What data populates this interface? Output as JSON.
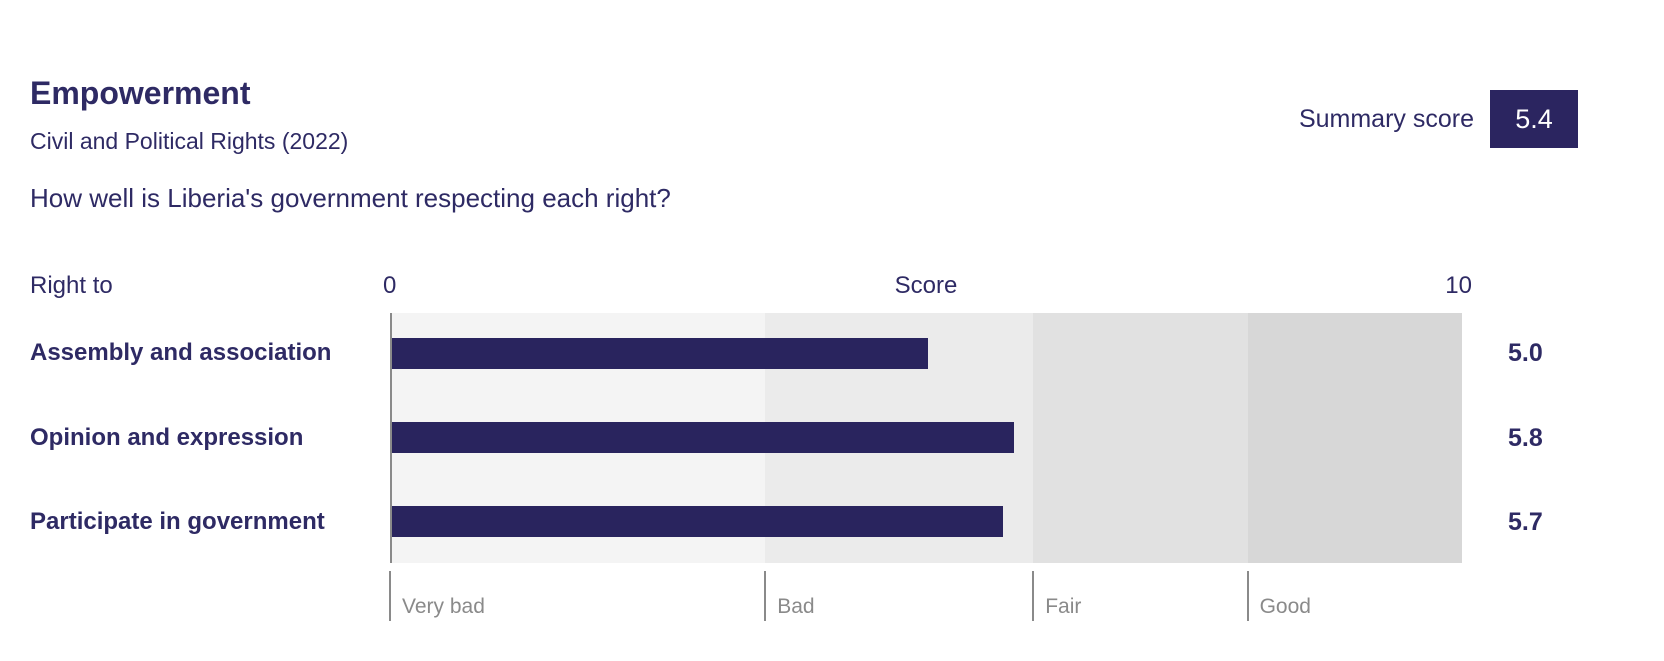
{
  "header": {
    "title": "Empowerment",
    "subtitle": "Civil and Political Rights (2022)",
    "question": "How well is Liberia's government respecting each right?",
    "summary_label": "Summary score",
    "summary_value": "5.4"
  },
  "chart_data": {
    "type": "bar",
    "title": "Empowerment — Civil and Political Rights (2022)",
    "orientation": "horizontal",
    "row_header": "Right to",
    "xlabel": "Score",
    "xlim": [
      0,
      10
    ],
    "axis": {
      "min_label": "0",
      "max_label": "10"
    },
    "categories": [
      "Assembly and association",
      "Opinion and expression",
      "Participate in government"
    ],
    "values": [
      5.0,
      5.8,
      5.7
    ],
    "value_labels": [
      "5.0",
      "5.8",
      "5.7"
    ],
    "summary_score": 5.4,
    "bar_color": "#29245e",
    "grid": false,
    "legend_position": "none",
    "bands": [
      {
        "label": "Very bad",
        "from": 0,
        "to": 3.5,
        "color": "#f4f4f4"
      },
      {
        "label": "Bad",
        "from": 3.5,
        "to": 6,
        "color": "#ebebeb"
      },
      {
        "label": "Fair",
        "from": 6,
        "to": 8,
        "color": "#e1e1e1"
      },
      {
        "label": "Good",
        "from": 8,
        "to": 10,
        "color": "#d7d7d7"
      }
    ]
  },
  "colors": {
    "navy": "#29245e",
    "text_navy": "#2e2a64",
    "muted_gray": "#8a8a8a",
    "background": "#ffffff"
  }
}
